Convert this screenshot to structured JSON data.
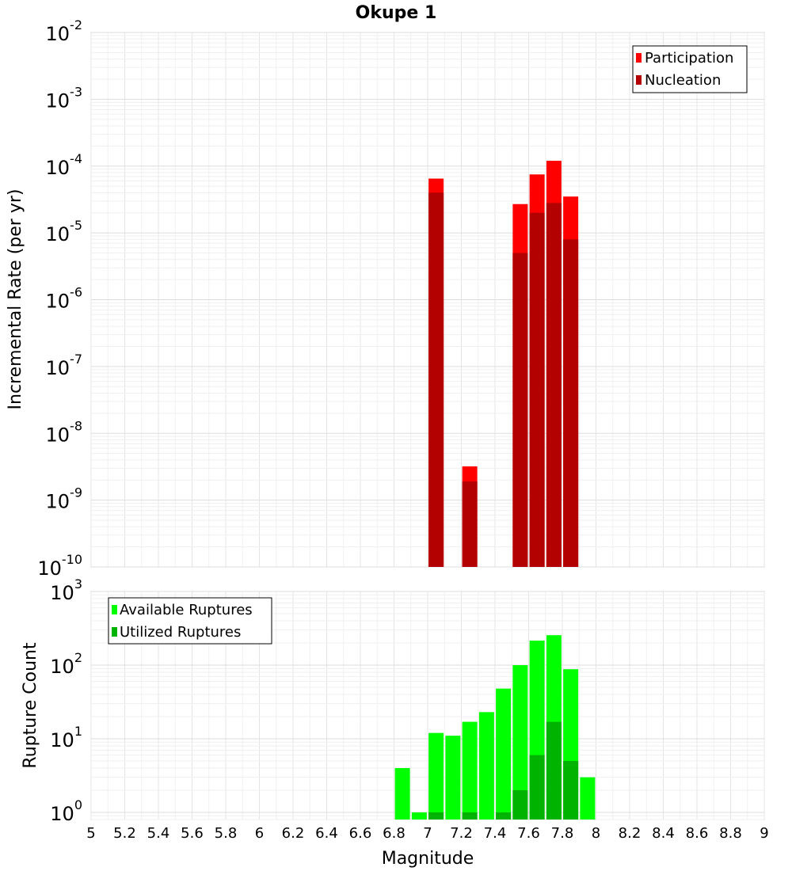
{
  "chart_data": [
    {
      "type": "bar",
      "title": "Okupe 1",
      "xlabel": "",
      "ylabel": "Incremental Rate (per yr)",
      "yscale": "log",
      "ylim": [
        1e-10,
        0.01
      ],
      "xlim": [
        5,
        9
      ],
      "ytick_labels": [
        {
          "base": "10",
          "exp": "-10"
        },
        {
          "base": "10",
          "exp": "-9"
        },
        {
          "base": "10",
          "exp": "-8"
        },
        {
          "base": "10",
          "exp": "-7"
        },
        {
          "base": "10",
          "exp": "-6"
        },
        {
          "base": "10",
          "exp": "-5"
        },
        {
          "base": "10",
          "exp": "-4"
        },
        {
          "base": "10",
          "exp": "-3"
        },
        {
          "base": "10",
          "exp": "-2"
        }
      ],
      "legend": {
        "position": "top-right",
        "entries": [
          "Participation",
          "Nucleation"
        ]
      },
      "series": [
        {
          "name": "Participation",
          "color": "#ff0000",
          "x": [
            7.05,
            7.25,
            7.55,
            7.65,
            7.75,
            7.85
          ],
          "values": [
            6.5e-05,
            3.2e-09,
            2.7e-05,
            7.5e-05,
            0.00012,
            3.5e-05
          ]
        },
        {
          "name": "Nucleation",
          "color": "#b30000",
          "x": [
            7.05,
            7.25,
            7.55,
            7.65,
            7.75,
            7.85
          ],
          "values": [
            4e-05,
            1.9e-09,
            5e-06,
            2e-05,
            2.8e-05,
            8e-06
          ]
        }
      ]
    },
    {
      "type": "bar",
      "title": "",
      "xlabel": "Magnitude",
      "ylabel": "Rupture Count",
      "yscale": "log",
      "ylim": [
        0.8,
        1000
      ],
      "xlim": [
        5,
        9
      ],
      "x_ticks": [
        "5",
        "5.2",
        "5.4",
        "5.6",
        "5.8",
        "6",
        "6.2",
        "6.4",
        "6.6",
        "6.8",
        "7",
        "7.2",
        "7.4",
        "7.6",
        "7.8",
        "8",
        "8.2",
        "8.4",
        "8.6",
        "8.8",
        "9"
      ],
      "ytick_labels": [
        {
          "base": "10",
          "exp": "0"
        },
        {
          "base": "10",
          "exp": "1"
        },
        {
          "base": "10",
          "exp": "2"
        },
        {
          "base": "10",
          "exp": "3"
        }
      ],
      "legend": {
        "position": "top-left",
        "entries": [
          "Available Ruptures",
          "Utilized Ruptures"
        ]
      },
      "series": [
        {
          "name": "Available Ruptures",
          "color": "#00ff00",
          "x": [
            6.85,
            6.95,
            7.05,
            7.15,
            7.25,
            7.35,
            7.45,
            7.55,
            7.65,
            7.75,
            7.85,
            7.95
          ],
          "values": [
            4,
            1,
            12,
            11,
            17,
            23,
            48,
            100,
            215,
            255,
            88,
            3
          ]
        },
        {
          "name": "Utilized Ruptures",
          "color": "#00b300",
          "x": [
            7.05,
            7.25,
            7.45,
            7.55,
            7.65,
            7.75,
            7.85
          ],
          "values": [
            1,
            1,
            1,
            2,
            6,
            17,
            5
          ]
        }
      ]
    }
  ]
}
